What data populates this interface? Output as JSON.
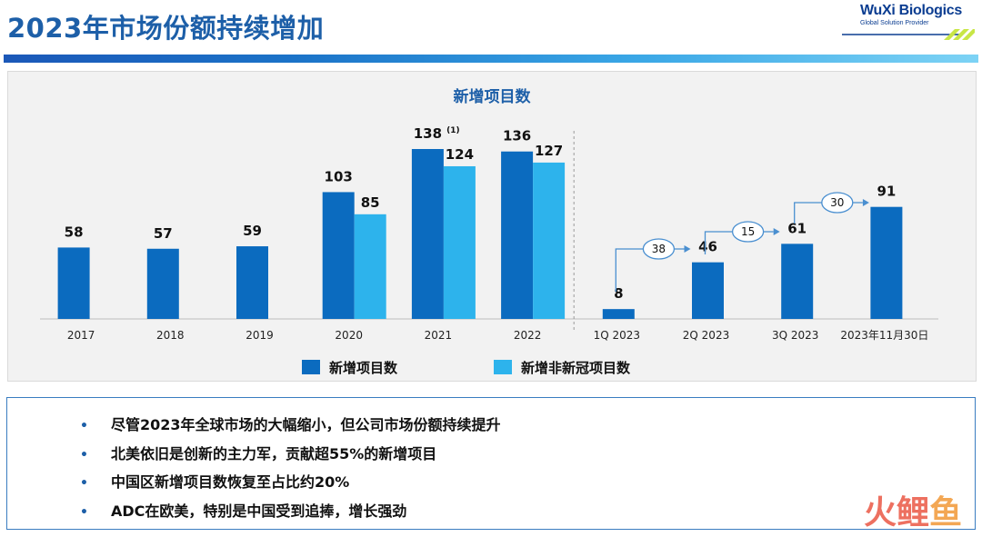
{
  "header": {
    "title": "2023年市场份额持续增加",
    "logo_name": "WuXi Biologics",
    "logo_tagline": "Global Solution Provider"
  },
  "colors": {
    "series1": "#0b6bbf",
    "series2": "#2db3ec",
    "title": "#1d5fa8",
    "accent_bar": "#1b73c8"
  },
  "chart_data": {
    "type": "bar",
    "title": "新增项目数",
    "categories": [
      "2017",
      "2018",
      "2019",
      "2020",
      "2021",
      "2022",
      "1Q 2023",
      "2Q 2023",
      "3Q 2023",
      "2023年11月30日"
    ],
    "series": [
      {
        "name": "新增项目数",
        "values": [
          58,
          57,
          59,
          103,
          138,
          136,
          8,
          46,
          61,
          91
        ]
      },
      {
        "name": "新增非新冠项目数",
        "values": [
          null,
          null,
          null,
          85,
          124,
          127,
          null,
          null,
          null,
          null
        ]
      }
    ],
    "footnote_marker": {
      "category": "2021",
      "text": "(1)"
    },
    "increments": [
      {
        "from": "1Q 2023",
        "to": "2Q 2023",
        "value": "38"
      },
      {
        "from": "2Q 2023",
        "to": "3Q 2023",
        "value": "15"
      },
      {
        "from": "3Q 2023",
        "to": "2023年11月30日",
        "value": "30"
      }
    ],
    "divider_after": "2022",
    "legend_position": "bottom"
  },
  "bullets": [
    "尽管2023年全球市场的大幅缩小，但公司市场份额持续提升",
    "北美依旧是创新的主力军，贡献超55%的新增项目",
    "中国区新增项目数恢复至占比约20%",
    "ADC在欧美，特别是中国受到追捧，增长强劲"
  ],
  "bullet_symbol": "•",
  "watermark": {
    "char1": "火",
    "char2": "鲤",
    "char3": "鱼"
  }
}
